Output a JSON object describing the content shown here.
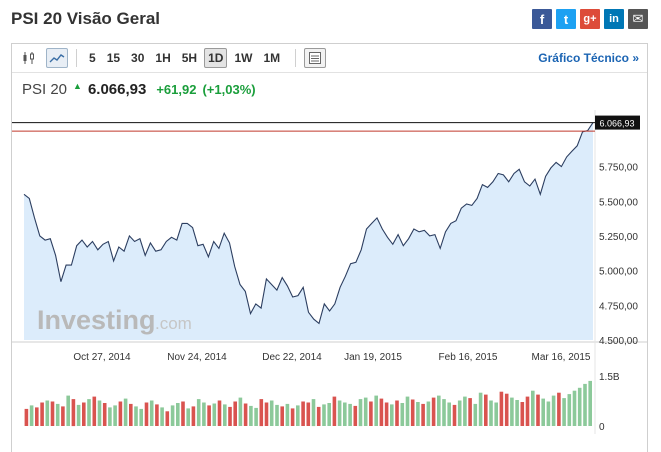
{
  "header": {
    "title": "PSI 20 Visão Geral",
    "share": [
      {
        "name": "facebook",
        "glyph": "f"
      },
      {
        "name": "twitter",
        "glyph": "t"
      },
      {
        "name": "google-plus",
        "glyph": "g+"
      },
      {
        "name": "linkedin",
        "glyph": "in"
      },
      {
        "name": "email",
        "glyph": "✉"
      }
    ]
  },
  "toolbar": {
    "timeframes": [
      "5",
      "15",
      "30",
      "1H",
      "5H",
      "1D",
      "1W",
      "1M"
    ],
    "active_timeframe": "1D",
    "technical_link": "Gráfico Técnico »"
  },
  "quote": {
    "name": "PSI 20",
    "price": "6.066,93",
    "change": "+61,92",
    "change_pct": "(+1,03%)"
  },
  "watermark": {
    "brand": "Investing",
    "suffix": ".com"
  },
  "colors": {
    "area_fill": "#dcecfb",
    "line": "#2c3e60",
    "up": "#8cc99a",
    "down": "#d9534f",
    "accent": "#1a9e3b",
    "ref_line": "#c0392b"
  },
  "chart_data": {
    "type": "area",
    "title": "",
    "x_tick_labels": [
      "Oct 27, 2014",
      "Nov 24, 2014",
      "Dec 22, 2014",
      "Jan 19, 2015",
      "Feb 16, 2015",
      "Mar 16, 2015"
    ],
    "y_tick_labels": [
      "5.750,00",
      "5.500,00",
      "5.250,00",
      "5.000,00",
      "4.750,00",
      "4.500,00"
    ],
    "ylim": [
      4500,
      6100
    ],
    "last_price_label": "6.066,93",
    "reference_value": 6005,
    "series": [
      {
        "values": [
          5550,
          5520,
          5380,
          5250,
          5220,
          5230,
          5110,
          4920,
          5040,
          5040,
          5180,
          5220,
          5170,
          5210,
          5150,
          5190,
          5210,
          5070,
          5170,
          5140,
          5250,
          5210,
          5230,
          5110,
          5200,
          5140,
          5150,
          5210,
          5240,
          5220,
          5340,
          5340,
          5310,
          5180,
          5190,
          5100,
          5210,
          5160,
          5270,
          5200,
          5030,
          4900,
          4850,
          4690,
          4760,
          4730,
          4940,
          4900,
          4860,
          4950,
          4890,
          4810,
          4820,
          4880,
          4700,
          4650,
          4620,
          4760,
          4710,
          4760,
          4880,
          4960,
          5050,
          5060,
          5150,
          5300,
          5340,
          5380,
          5300,
          5240,
          5190,
          5260,
          5180,
          5230,
          5300,
          5280,
          5290,
          5250,
          5260,
          5160,
          5280,
          5340,
          5360,
          5450,
          5480,
          5470,
          5520,
          5620,
          5600,
          5640,
          5700,
          5690,
          5640,
          5700,
          5730,
          5640,
          5610,
          5660,
          5550,
          5680,
          5740,
          5780,
          5750,
          5820,
          5860,
          5900,
          6000,
          6010,
          6066.93
        ]
      }
    ],
    "volume": {
      "ylim_labels": [
        "1.5B",
        "0"
      ],
      "values": [
        0.35,
        0.42,
        0.38,
        0.48,
        0.52,
        0.5,
        0.45,
        0.4,
        0.62,
        0.55,
        0.43,
        0.48,
        0.55,
        0.6,
        0.52,
        0.47,
        0.38,
        0.42,
        0.5,
        0.56,
        0.45,
        0.4,
        0.35,
        0.48,
        0.52,
        0.44,
        0.38,
        0.3,
        0.42,
        0.47,
        0.5,
        0.36,
        0.4,
        0.55,
        0.48,
        0.42,
        0.46,
        0.52,
        0.44,
        0.39,
        0.5,
        0.58,
        0.46,
        0.41,
        0.37,
        0.55,
        0.48,
        0.52,
        0.43,
        0.4,
        0.45,
        0.36,
        0.42,
        0.5,
        0.48,
        0.55,
        0.39,
        0.44,
        0.47,
        0.6,
        0.52,
        0.48,
        0.45,
        0.41,
        0.55,
        0.58,
        0.5,
        0.62,
        0.56,
        0.48,
        0.44,
        0.52,
        0.47,
        0.6,
        0.54,
        0.49,
        0.45,
        0.5,
        0.58,
        0.62,
        0.55,
        0.48,
        0.43,
        0.52,
        0.6,
        0.57,
        0.45,
        0.68,
        0.64,
        0.52,
        0.48,
        0.7,
        0.66,
        0.58,
        0.53,
        0.49,
        0.6,
        0.72,
        0.64,
        0.56,
        0.5,
        0.62,
        0.68,
        0.57,
        0.65,
        0.72,
        0.78,
        0.86,
        0.92
      ],
      "up": [
        false,
        true,
        false,
        false,
        true,
        false,
        true,
        false,
        true,
        false,
        true,
        false,
        true,
        false,
        true,
        false,
        true,
        true,
        false,
        true,
        false,
        true,
        true,
        false,
        true,
        false,
        true,
        false,
        true,
        true,
        false,
        true,
        false,
        true,
        true,
        false,
        true,
        false,
        true,
        false,
        false,
        true,
        false,
        true,
        true,
        false,
        false,
        true,
        true,
        false,
        true,
        false,
        true,
        false,
        false,
        true,
        false,
        true,
        true,
        false,
        true,
        true,
        true,
        false,
        true,
        true,
        false,
        true,
        false,
        false,
        true,
        false,
        true,
        true,
        false,
        true,
        false,
        true,
        false,
        true,
        true,
        true,
        false,
        true,
        true,
        false,
        true,
        true,
        false,
        true,
        true,
        false,
        false,
        true,
        true,
        false,
        false,
        true,
        false,
        true,
        true,
        true,
        false,
        true,
        true,
        true,
        true,
        true,
        true
      ]
    }
  }
}
